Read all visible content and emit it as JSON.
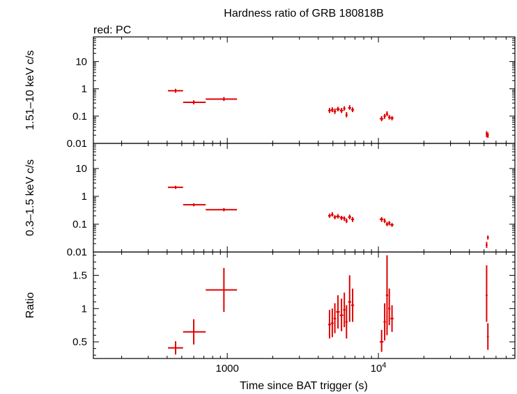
{
  "chart_data": {
    "type": "scatter",
    "title": "Hardness ratio of GRB 180818B",
    "subtitle": "red: PC",
    "xlabel": "Time since BAT trigger (s)",
    "xscale": "log",
    "xlim": [
      130,
      80000
    ],
    "x_tick_labels": [
      {
        "value": 1000,
        "label": "1000"
      },
      {
        "value": 10000,
        "label": "10",
        "exponent": "4"
      }
    ],
    "series_color": "#e00000",
    "panels": [
      {
        "id": "hard",
        "ylabel": "1.51–10 keV c/s",
        "yscale": "log",
        "ylim": [
          0.01,
          80
        ],
        "y_tick_labels": [
          {
            "value": 0.01,
            "label": "0.01"
          },
          {
            "value": 0.1,
            "label": "0.1"
          },
          {
            "value": 1,
            "label": "1"
          },
          {
            "value": 10,
            "label": "10"
          }
        ],
        "points": [
          {
            "x": 455,
            "xlo": 405,
            "xhi": 510,
            "y": 0.85,
            "ylo": 0.72,
            "yhi": 1.0
          },
          {
            "x": 600,
            "xlo": 510,
            "xhi": 720,
            "y": 0.32,
            "ylo": 0.27,
            "yhi": 0.38
          },
          {
            "x": 950,
            "xlo": 720,
            "xhi": 1160,
            "y": 0.42,
            "ylo": 0.36,
            "yhi": 0.5
          },
          {
            "x": 4750,
            "xlo": 4650,
            "xhi": 4850,
            "y": 0.16,
            "ylo": 0.13,
            "yhi": 0.2
          },
          {
            "x": 4950,
            "xlo": 4850,
            "xhi": 5050,
            "y": 0.17,
            "ylo": 0.14,
            "yhi": 0.21
          },
          {
            "x": 5150,
            "xlo": 5050,
            "xhi": 5250,
            "y": 0.15,
            "ylo": 0.12,
            "yhi": 0.19
          },
          {
            "x": 5400,
            "xlo": 5250,
            "xhi": 5550,
            "y": 0.18,
            "ylo": 0.15,
            "yhi": 0.22
          },
          {
            "x": 5700,
            "xlo": 5550,
            "xhi": 5850,
            "y": 0.16,
            "ylo": 0.13,
            "yhi": 0.2
          },
          {
            "x": 5950,
            "xlo": 5850,
            "xhi": 6050,
            "y": 0.19,
            "ylo": 0.16,
            "yhi": 0.23
          },
          {
            "x": 6150,
            "xlo": 6050,
            "xhi": 6250,
            "y": 0.11,
            "ylo": 0.09,
            "yhi": 0.14
          },
          {
            "x": 6450,
            "xlo": 6300,
            "xhi": 6600,
            "y": 0.2,
            "ylo": 0.17,
            "yhi": 0.25
          },
          {
            "x": 6750,
            "xlo": 6600,
            "xhi": 6900,
            "y": 0.17,
            "ylo": 0.14,
            "yhi": 0.21
          },
          {
            "x": 10500,
            "xlo": 10200,
            "xhi": 10800,
            "y": 0.08,
            "ylo": 0.065,
            "yhi": 0.1
          },
          {
            "x": 11000,
            "xlo": 10800,
            "xhi": 11200,
            "y": 0.1,
            "ylo": 0.08,
            "yhi": 0.12
          },
          {
            "x": 11400,
            "xlo": 11200,
            "xhi": 11600,
            "y": 0.12,
            "ylo": 0.1,
            "yhi": 0.15
          },
          {
            "x": 11800,
            "xlo": 11600,
            "xhi": 12000,
            "y": 0.09,
            "ylo": 0.075,
            "yhi": 0.11
          },
          {
            "x": 12300,
            "xlo": 12000,
            "xhi": 12600,
            "y": 0.085,
            "ylo": 0.07,
            "yhi": 0.1
          },
          {
            "x": 52000,
            "xlo": 51500,
            "xhi": 52500,
            "y": 0.022,
            "ylo": 0.017,
            "yhi": 0.028
          },
          {
            "x": 53000,
            "xlo": 52500,
            "xhi": 53500,
            "y": 0.02,
            "ylo": 0.016,
            "yhi": 0.025
          }
        ]
      },
      {
        "id": "soft",
        "ylabel": "0.3–1.5 keV c/s",
        "yscale": "log",
        "ylim": [
          0.01,
          80
        ],
        "y_tick_labels": [
          {
            "value": 0.01,
            "label": "0.01"
          },
          {
            "value": 0.1,
            "label": "0.1"
          },
          {
            "value": 1,
            "label": "1"
          },
          {
            "value": 10,
            "label": "10"
          }
        ],
        "points": [
          {
            "x": 455,
            "xlo": 405,
            "xhi": 510,
            "y": 2.1,
            "ylo": 1.85,
            "yhi": 2.4
          },
          {
            "x": 600,
            "xlo": 510,
            "xhi": 720,
            "y": 0.5,
            "ylo": 0.44,
            "yhi": 0.56
          },
          {
            "x": 950,
            "xlo": 720,
            "xhi": 1160,
            "y": 0.33,
            "ylo": 0.29,
            "yhi": 0.38
          },
          {
            "x": 4750,
            "xlo": 4650,
            "xhi": 4850,
            "y": 0.2,
            "ylo": 0.17,
            "yhi": 0.24
          },
          {
            "x": 4950,
            "xlo": 4850,
            "xhi": 5050,
            "y": 0.22,
            "ylo": 0.19,
            "yhi": 0.27
          },
          {
            "x": 5150,
            "xlo": 5050,
            "xhi": 5250,
            "y": 0.18,
            "ylo": 0.15,
            "yhi": 0.21
          },
          {
            "x": 5400,
            "xlo": 5250,
            "xhi": 5550,
            "y": 0.19,
            "ylo": 0.16,
            "yhi": 0.23
          },
          {
            "x": 5700,
            "xlo": 5550,
            "xhi": 5850,
            "y": 0.17,
            "ylo": 0.14,
            "yhi": 0.2
          },
          {
            "x": 5950,
            "xlo": 5850,
            "xhi": 6050,
            "y": 0.16,
            "ylo": 0.13,
            "yhi": 0.19
          },
          {
            "x": 6150,
            "xlo": 6050,
            "xhi": 6250,
            "y": 0.13,
            "ylo": 0.11,
            "yhi": 0.16
          },
          {
            "x": 6450,
            "xlo": 6300,
            "xhi": 6600,
            "y": 0.18,
            "ylo": 0.15,
            "yhi": 0.22
          },
          {
            "x": 6750,
            "xlo": 6600,
            "xhi": 6900,
            "y": 0.15,
            "ylo": 0.12,
            "yhi": 0.18
          },
          {
            "x": 10500,
            "xlo": 10200,
            "xhi": 10800,
            "y": 0.15,
            "ylo": 0.12,
            "yhi": 0.18
          },
          {
            "x": 11000,
            "xlo": 10800,
            "xhi": 11200,
            "y": 0.13,
            "ylo": 0.11,
            "yhi": 0.16
          },
          {
            "x": 11400,
            "xlo": 11200,
            "xhi": 11600,
            "y": 0.1,
            "ylo": 0.085,
            "yhi": 0.12
          },
          {
            "x": 11800,
            "xlo": 11600,
            "xhi": 12000,
            "y": 0.11,
            "ylo": 0.09,
            "yhi": 0.13
          },
          {
            "x": 12300,
            "xlo": 12000,
            "xhi": 12600,
            "y": 0.095,
            "ylo": 0.08,
            "yhi": 0.11
          },
          {
            "x": 52000,
            "xlo": 51500,
            "xhi": 52500,
            "y": 0.018,
            "ylo": 0.014,
            "yhi": 0.023
          },
          {
            "x": 53000,
            "xlo": 52500,
            "xhi": 53500,
            "y": 0.033,
            "ylo": 0.028,
            "yhi": 0.039
          }
        ]
      },
      {
        "id": "ratio",
        "ylabel": "Ratio",
        "yscale": "linear",
        "ylim": [
          0.25,
          1.85
        ],
        "y_tick_labels": [
          {
            "value": 0.5,
            "label": "0.5"
          },
          {
            "value": 1,
            "label": "1"
          },
          {
            "value": 1.5,
            "label": "1.5"
          }
        ],
        "points": [
          {
            "x": 455,
            "xlo": 405,
            "xhi": 510,
            "y": 0.41,
            "ylo": 0.31,
            "yhi": 0.51
          },
          {
            "x": 600,
            "xlo": 510,
            "xhi": 720,
            "y": 0.65,
            "ylo": 0.46,
            "yhi": 0.84
          },
          {
            "x": 950,
            "xlo": 720,
            "xhi": 1160,
            "y": 1.28,
            "ylo": 0.95,
            "yhi": 1.61
          },
          {
            "x": 4750,
            "xlo": 4650,
            "xhi": 4850,
            "y": 0.76,
            "ylo": 0.55,
            "yhi": 0.98
          },
          {
            "x": 4950,
            "xlo": 4850,
            "xhi": 5050,
            "y": 0.78,
            "ylo": 0.57,
            "yhi": 1.0
          },
          {
            "x": 5150,
            "xlo": 5050,
            "xhi": 5250,
            "y": 0.85,
            "ylo": 0.63,
            "yhi": 1.08
          },
          {
            "x": 5400,
            "xlo": 5250,
            "xhi": 5550,
            "y": 0.95,
            "ylo": 0.7,
            "yhi": 1.2
          },
          {
            "x": 5700,
            "xlo": 5550,
            "xhi": 5850,
            "y": 0.9,
            "ylo": 0.66,
            "yhi": 1.15
          },
          {
            "x": 5950,
            "xlo": 5850,
            "xhi": 6050,
            "y": 0.98,
            "ylo": 0.72,
            "yhi": 1.24
          },
          {
            "x": 6150,
            "xlo": 6050,
            "xhi": 6250,
            "y": 0.8,
            "ylo": 0.55,
            "yhi": 1.05
          },
          {
            "x": 6450,
            "xlo": 6300,
            "xhi": 6600,
            "y": 1.1,
            "ylo": 0.8,
            "yhi": 1.5
          },
          {
            "x": 6750,
            "xlo": 6600,
            "xhi": 6900,
            "y": 1.05,
            "ylo": 0.8,
            "yhi": 1.3
          },
          {
            "x": 10500,
            "xlo": 10200,
            "xhi": 10800,
            "y": 0.5,
            "ylo": 0.35,
            "yhi": 0.68
          },
          {
            "x": 11000,
            "xlo": 10800,
            "xhi": 11200,
            "y": 0.8,
            "ylo": 0.52,
            "yhi": 1.08
          },
          {
            "x": 11400,
            "xlo": 11200,
            "xhi": 11600,
            "y": 1.2,
            "ylo": 0.6,
            "yhi": 1.8
          },
          {
            "x": 11800,
            "xlo": 11600,
            "xhi": 12000,
            "y": 1.0,
            "ylo": 0.75,
            "yhi": 1.3
          },
          {
            "x": 12300,
            "xlo": 12000,
            "xhi": 12600,
            "y": 0.85,
            "ylo": 0.65,
            "yhi": 1.05
          },
          {
            "x": 52000,
            "xlo": 51500,
            "xhi": 52500,
            "y": 1.2,
            "ylo": 0.8,
            "yhi": 1.65
          },
          {
            "x": 53000,
            "xlo": 52500,
            "xhi": 53500,
            "y": 0.58,
            "ylo": 0.38,
            "yhi": 0.78
          }
        ]
      }
    ]
  }
}
